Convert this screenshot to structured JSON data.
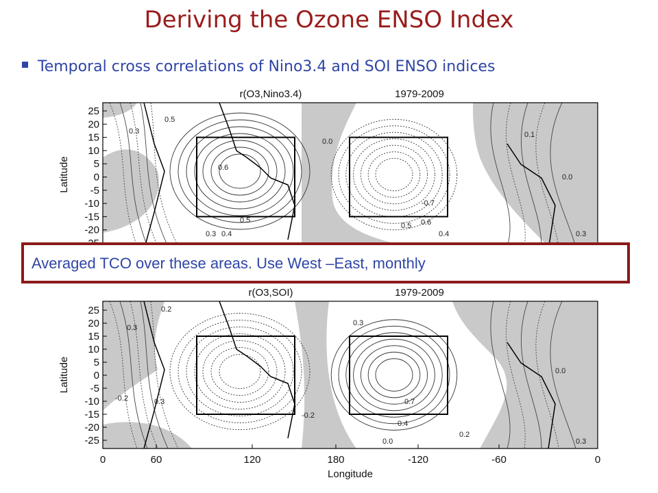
{
  "title": "Deriving the Ozone ENSO Index",
  "bullet": "Temporal cross correlations of Nino3.4 and SOI ENSO indices",
  "callout": "Averaged TCO over these areas.  Use West –East, monthly",
  "panels": [
    {
      "title": "r(O3,Nino3.4)",
      "period": "1979-2009",
      "ylabel": "Latitude",
      "annotations": [
        "0.3",
        "0.5",
        "0.6",
        "0.5",
        "0.4",
        "0.3",
        "0.0",
        "-0.7",
        "0.5",
        "0.6",
        "0.4",
        "0.1",
        "0.0",
        "0.3"
      ]
    },
    {
      "title": "r(O3,SOI)",
      "period": "1979-2009",
      "ylabel": "Latitude",
      "annotations": [
        "0.3",
        "0.2",
        "-0.2",
        "0.3",
        "-0.2",
        "0.3",
        "0.7",
        "0.4",
        "0.2",
        "0.0",
        "0.0",
        "0.3"
      ]
    }
  ],
  "yticks": [
    "25",
    "20",
    "15",
    "10",
    "5",
    "0",
    "-5",
    "-10",
    "-15",
    "-20",
    "-25"
  ],
  "xticks": [
    "0",
    "60",
    "120",
    "180",
    "-120",
    "-60",
    "0"
  ],
  "xlabel": "Longitude"
}
